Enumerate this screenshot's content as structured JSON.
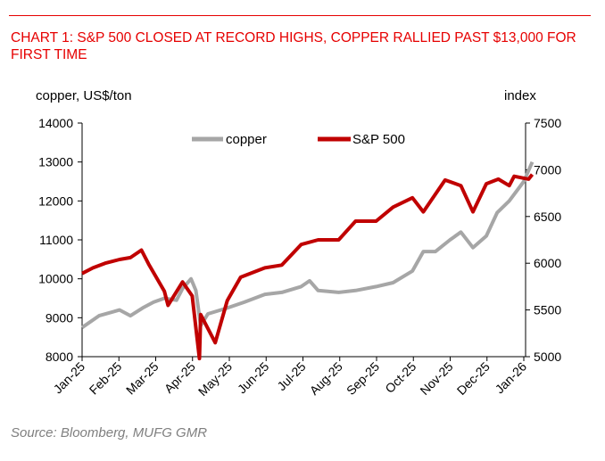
{
  "chart_data": {
    "type": "line",
    "title": "CHART 1: S&P 500 CLOSED AT RECORD HIGHS, COPPER RALLIED PAST $13,000 FOR FIRST TIME",
    "source": "Source: Bloomberg, MUFG GMR",
    "ylabel_left": "copper, US$/ton",
    "ylabel_right": "index",
    "ylim_left": [
      8000,
      14000
    ],
    "ylim_right": [
      5000,
      7500
    ],
    "yticks_left": [
      "8000",
      "9000",
      "10000",
      "11000",
      "12000",
      "13000",
      "14000"
    ],
    "yticks_right": [
      "5000",
      "5500",
      "6000",
      "6500",
      "7000",
      "7500"
    ],
    "xticks": [
      "Jan-25",
      "Feb-25",
      "Mar-25",
      "Apr-25",
      "May-25",
      "Jun-25",
      "Jul-25",
      "Aug-25",
      "Sep-25",
      "Oct-25",
      "Nov-25",
      "Dec-25",
      "Jan-26"
    ],
    "legend_placement": "top-center",
    "grid": false,
    "series": [
      {
        "name": "copper",
        "axis": "left",
        "color": "#a6a6a6",
        "x": [
          "2025-01-01",
          "2025-01-15",
          "2025-02-01",
          "2025-02-10",
          "2025-02-20",
          "2025-03-01",
          "2025-03-10",
          "2025-03-20",
          "2025-03-25",
          "2025-04-01",
          "2025-04-05",
          "2025-04-09",
          "2025-04-15",
          "2025-05-01",
          "2025-05-15",
          "2025-06-01",
          "2025-06-15",
          "2025-07-01",
          "2025-07-08",
          "2025-07-15",
          "2025-08-01",
          "2025-08-15",
          "2025-09-01",
          "2025-09-15",
          "2025-10-01",
          "2025-10-10",
          "2025-10-20",
          "2025-11-01",
          "2025-11-10",
          "2025-11-20",
          "2025-12-01",
          "2025-12-10",
          "2025-12-20",
          "2026-01-01",
          "2026-01-08"
        ],
        "values": [
          8750,
          9050,
          9200,
          9050,
          9250,
          9400,
          9500,
          9450,
          9750,
          10000,
          9700,
          8800,
          9100,
          9250,
          9400,
          9600,
          9650,
          9800,
          9950,
          9700,
          9650,
          9700,
          9800,
          9900,
          10200,
          10700,
          10700,
          11000,
          11200,
          10800,
          11100,
          11700,
          12000,
          12500,
          13000
        ]
      },
      {
        "name": "S&P 500",
        "axis": "right",
        "color": "#c00000",
        "x": [
          "2025-01-01",
          "2025-01-10",
          "2025-01-20",
          "2025-02-01",
          "2025-02-10",
          "2025-02-19",
          "2025-02-25",
          "2025-03-10",
          "2025-03-13",
          "2025-03-25",
          "2025-04-02",
          "2025-04-08",
          "2025-04-09",
          "2025-04-21",
          "2025-05-01",
          "2025-05-12",
          "2025-06-01",
          "2025-06-15",
          "2025-07-01",
          "2025-07-15",
          "2025-08-01",
          "2025-08-15",
          "2025-09-01",
          "2025-09-15",
          "2025-10-01",
          "2025-10-10",
          "2025-10-28",
          "2025-11-10",
          "2025-11-20",
          "2025-12-01",
          "2025-12-11",
          "2025-12-20",
          "2025-12-24",
          "2026-01-05",
          "2026-01-08"
        ],
        "values": [
          5890,
          5950,
          6000,
          6040,
          6060,
          6140,
          5990,
          5700,
          5550,
          5800,
          5650,
          4980,
          5450,
          5150,
          5600,
          5850,
          5950,
          5980,
          6200,
          6250,
          6250,
          6450,
          6450,
          6600,
          6700,
          6550,
          6890,
          6830,
          6550,
          6850,
          6900,
          6830,
          6930,
          6900,
          6950
        ]
      }
    ]
  }
}
